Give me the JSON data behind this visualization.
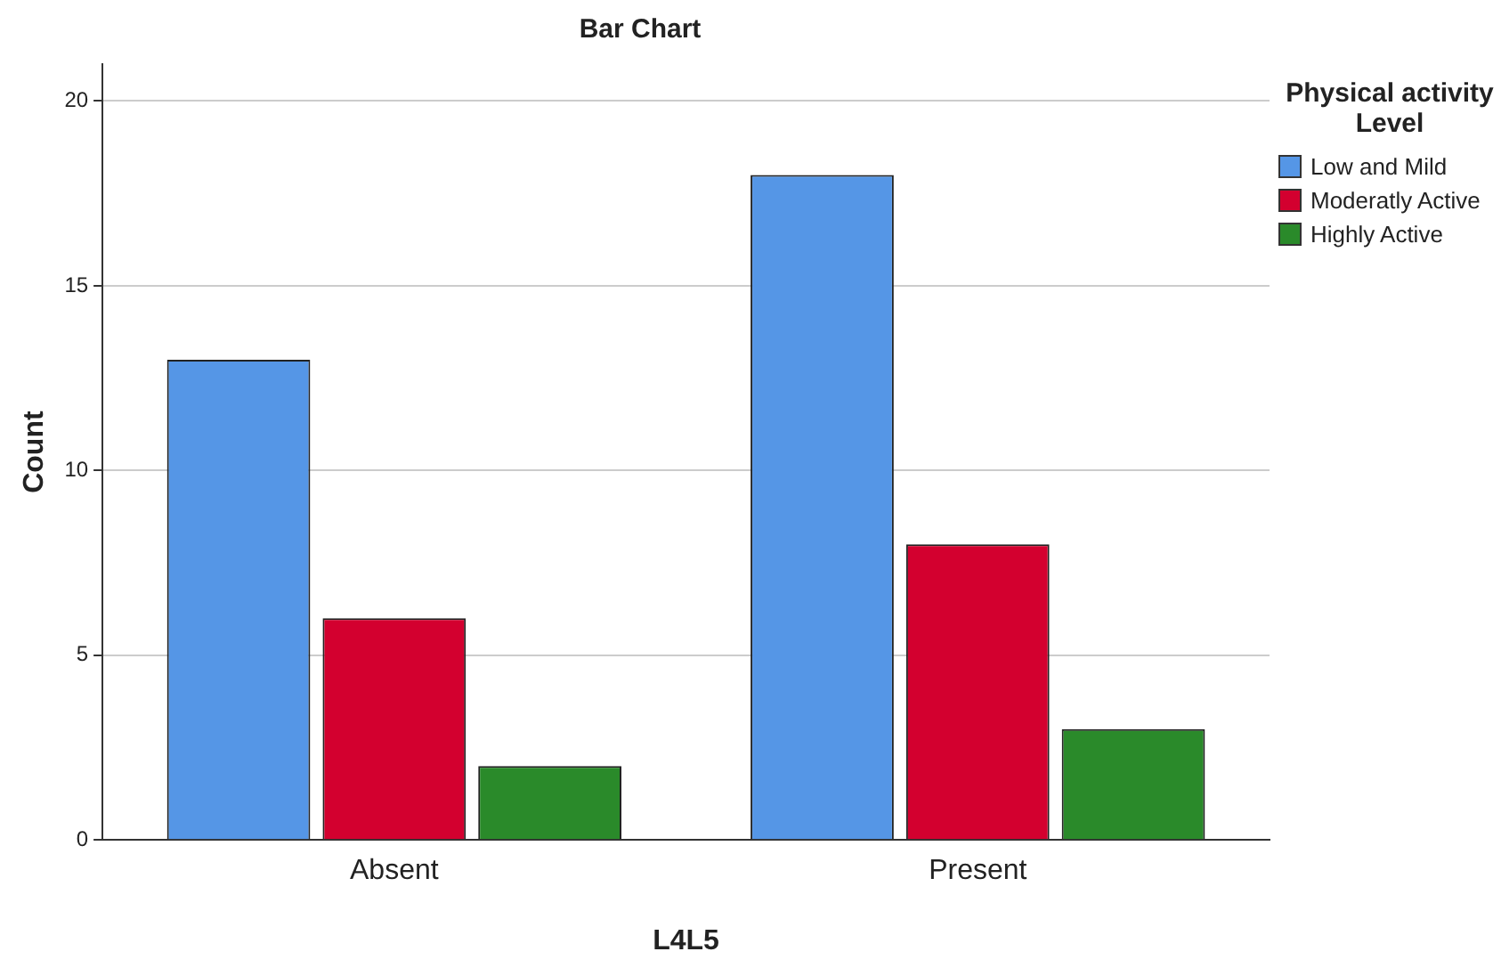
{
  "chart_data": {
    "type": "bar",
    "title": "Bar Chart",
    "xlabel": "L4L5",
    "ylabel": "Count",
    "legend_title": "Physical activity Level",
    "categories": [
      "Absent",
      "Present"
    ],
    "series": [
      {
        "name": "Low and Mild",
        "color": "#5596e6",
        "values": [
          13,
          18
        ]
      },
      {
        "name": "Moderatly Active",
        "color": "#d3002f",
        "values": [
          6,
          8
        ]
      },
      {
        "name": "Highly Active",
        "color": "#2a8a2a",
        "values": [
          2,
          3
        ]
      }
    ],
    "ylim": [
      0,
      21
    ],
    "yticks": [
      0,
      5,
      10,
      15,
      20
    ],
    "grid": "y",
    "legend": "top right"
  }
}
